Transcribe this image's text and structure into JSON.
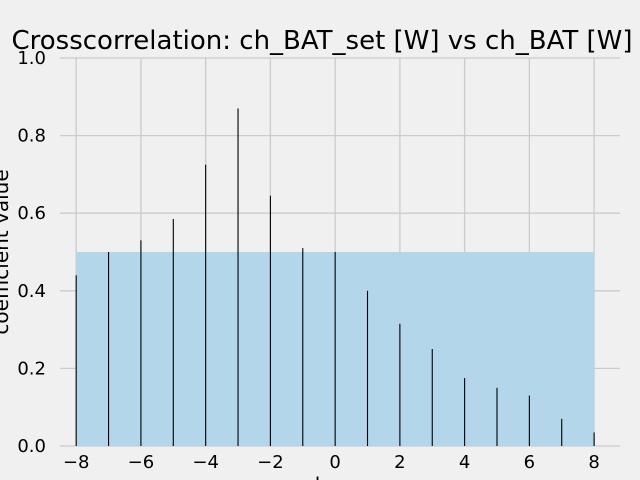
{
  "chart_data": {
    "type": "bar",
    "title": "Crosscorrelation: ch_BAT_set [W] vs ch_BAT [W]",
    "xlabel": "lag",
    "ylabel": "coefficient value",
    "xlim": [
      -8.5,
      8.8
    ],
    "ylim": [
      0,
      1.0
    ],
    "x_ticks": [
      -8,
      -6,
      -4,
      -2,
      0,
      2,
      4,
      6,
      8
    ],
    "y_ticks": [
      0.0,
      0.2,
      0.4,
      0.6,
      0.8,
      1.0
    ],
    "grid": true,
    "threshold_band": {
      "x_range": [
        -8,
        8
      ],
      "y_range": [
        0,
        0.5
      ],
      "color": "#b3d6ea"
    },
    "series": [
      {
        "color": "#000000",
        "x": [
          -8,
          -7,
          -6,
          -5,
          -4,
          -3,
          -2,
          -1,
          0,
          1,
          2,
          3,
          4,
          5,
          6,
          7,
          8
        ],
        "values": [
          0.44,
          0.5,
          0.53,
          0.585,
          0.725,
          0.87,
          0.645,
          0.51,
          0.5,
          0.4,
          0.315,
          0.25,
          0.175,
          0.15,
          0.13,
          0.07,
          0.035
        ]
      }
    ]
  },
  "colors": {
    "background": "#f0f0f0",
    "grid": "#cbcbcb",
    "band": "#b3d6ea",
    "bar": "#000000"
  }
}
